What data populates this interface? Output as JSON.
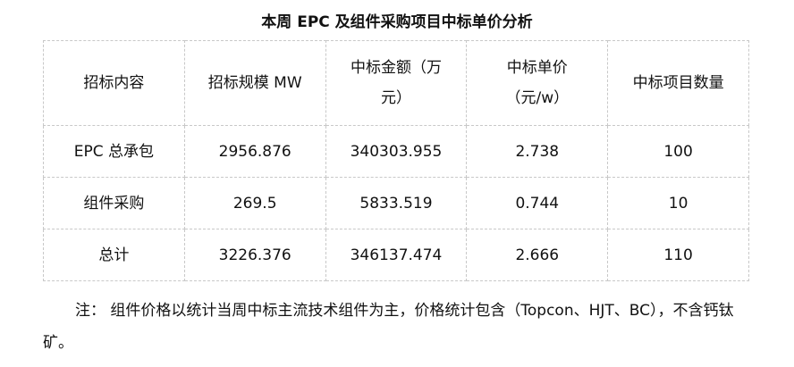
{
  "header": {
    "title": "本周 EPC 及组件采购项目中标单价分析"
  },
  "table": {
    "columns": [
      "招标内容",
      "招标规模 MW",
      "中标金额（万元）",
      "中标单价（元/w）",
      "中标项目数量"
    ],
    "rows": [
      [
        "EPC 总承包",
        "2956.876",
        "340303.955",
        "2.738",
        "100"
      ],
      [
        "组件采购",
        "269.5",
        "5833.519",
        "0.744",
        "10"
      ],
      [
        "总计",
        "3226.376",
        "346137.474",
        "2.666",
        "110"
      ]
    ]
  },
  "note": "注： 组件价格以统计当周中标主流技术组件为主，价格统计包含（Topcon、HJT、BC），不含钙钛矿。"
}
